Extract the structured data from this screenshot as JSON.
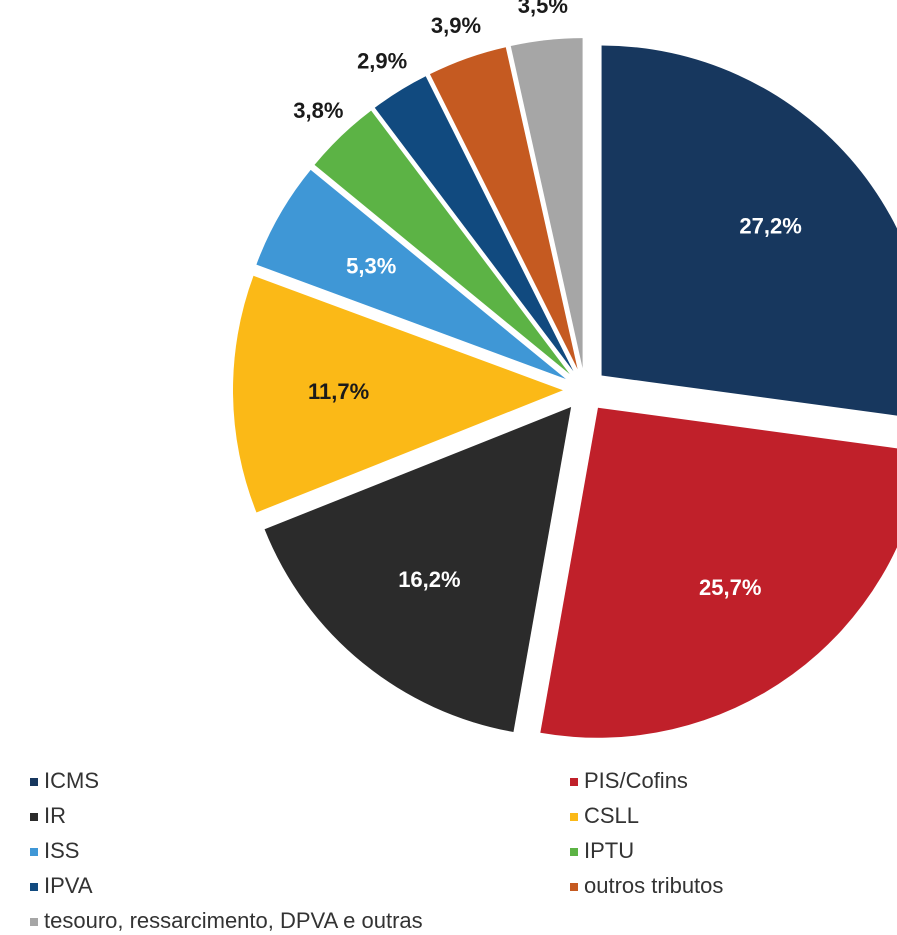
{
  "chart_data": {
    "type": "pie",
    "categories": [
      "ICMS",
      "PIS/Cofins",
      "IR",
      "CSLL",
      "ISS",
      "IPTU",
      "IPVA",
      "outros tributos",
      "tesouro, ressarcimento, DPVA e outras"
    ],
    "values": [
      27.2,
      25.7,
      16.2,
      11.7,
      5.3,
      3.8,
      2.9,
      3.9,
      3.5
    ],
    "value_labels": [
      "27,2%",
      "25,7%",
      "16,2%",
      "11,7%",
      "5,3%",
      "3,8%",
      "2,9%",
      "3,9%",
      "3,5%"
    ],
    "colors": [
      "#17375e",
      "#c0202a",
      "#2b2b2b",
      "#fbb917",
      "#3f97d6",
      "#5cb345",
      "#114a7f",
      "#c55a21",
      "#a6a6a6"
    ],
    "legend": "bottom"
  }
}
